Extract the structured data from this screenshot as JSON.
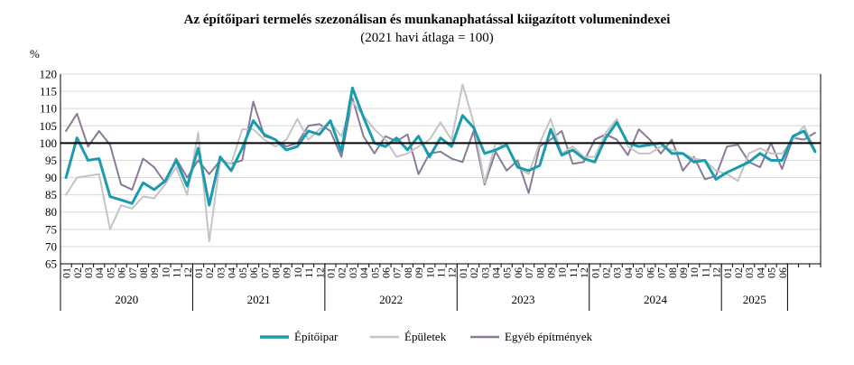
{
  "chart_data": {
    "type": "line",
    "title": "Az építőipari  termelés szezonálisan és munkanaphatással kiigazított volumenindexei",
    "subtitle": "(2021 havi átlaga = 100)",
    "ylabel": "%",
    "ylim": [
      65,
      120
    ],
    "yticks": [
      65,
      70,
      75,
      80,
      85,
      90,
      95,
      100,
      105,
      110,
      115,
      120
    ],
    "reference_line": 100,
    "grid": true,
    "legend_position": "bottom",
    "months": [
      "01",
      "02",
      "03",
      "04",
      "05",
      "06",
      "07",
      "08",
      "09",
      "10",
      "11",
      "12"
    ],
    "years": [
      "2020",
      "2021",
      "2022",
      "2023",
      "2024",
      "2025"
    ],
    "last_year_months": 6,
    "series": [
      {
        "name": "Építőipar",
        "color": "#1a9bae",
        "width": 3,
        "values": [
          90,
          101.5,
          95,
          95.5,
          84.5,
          83.5,
          82.5,
          88.5,
          86.5,
          89,
          95,
          87.5,
          98.5,
          82,
          96,
          92,
          98.5,
          106.5,
          102.5,
          101,
          98,
          99,
          103.5,
          102.5,
          106.5,
          97.5,
          116,
          107.5,
          100,
          99,
          101.5,
          98,
          102,
          96,
          101.5,
          99,
          108,
          104.5,
          97,
          98,
          99.5,
          93,
          92,
          93.5,
          104,
          96.5,
          98,
          95.5,
          94.5,
          101.5,
          106,
          100,
          99,
          99.5,
          100,
          97,
          97,
          94.5,
          95,
          89.5,
          91.5,
          93,
          94.5,
          97,
          95,
          95,
          102,
          103.5,
          97.5
        ]
      },
      {
        "name": "Épületek",
        "color": "#c4c4c4",
        "width": 2,
        "values": [
          85,
          90,
          90.5,
          91,
          75,
          82,
          81,
          84.5,
          84,
          88,
          93,
          85,
          103,
          71.5,
          95,
          94,
          104,
          104,
          101,
          99,
          101,
          107,
          101,
          104,
          106,
          102,
          112,
          108,
          104,
          101,
          96,
          97,
          99,
          101,
          106,
          101,
          117,
          106,
          88.5,
          100,
          99,
          93,
          91,
          100,
          107,
          97,
          99,
          96,
          96,
          103,
          107,
          99,
          97,
          97,
          99,
          98,
          97,
          95.5,
          95,
          92,
          91,
          89,
          97,
          98.5,
          97,
          97,
          101,
          105,
          98
        ]
      },
      {
        "name": "Egyéb építmények",
        "color": "#8a7a96",
        "width": 2,
        "values": [
          103.5,
          108.5,
          99,
          103.5,
          99.5,
          88,
          86.5,
          95.5,
          93,
          88.5,
          95.5,
          90,
          95,
          91,
          95,
          94,
          95,
          112,
          102,
          101,
          99,
          100,
          105,
          105.5,
          103.5,
          96,
          113,
          102,
          97,
          102,
          100.5,
          102.5,
          91,
          97,
          97.5,
          95.5,
          94.5,
          103.5,
          88,
          97.5,
          92,
          95,
          85.5,
          99,
          101,
          103.5,
          94,
          94.5,
          101,
          102.5,
          101,
          96.5,
          104,
          101,
          97,
          101,
          92,
          96,
          89.5,
          90.5,
          99,
          99.5,
          94.5,
          93,
          100,
          92.5,
          101.5,
          101,
          103
        ]
      }
    ]
  }
}
